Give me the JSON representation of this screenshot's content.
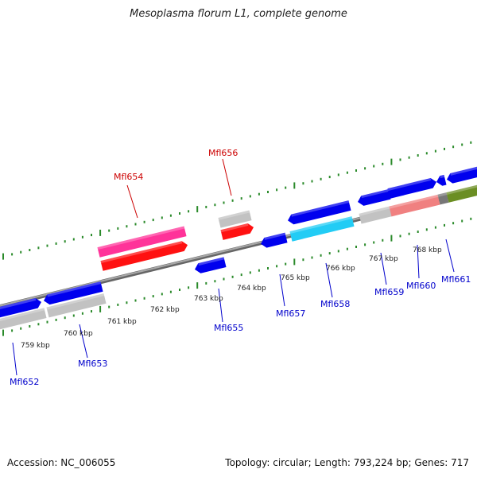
{
  "title": "Mesoplasma florum L1, complete genome",
  "footer": {
    "accession": "Accession: NC_006055",
    "info": "Topology: circular; Length: 793,224 bp; Genes: 717"
  },
  "colors": {
    "backbone": "#888888",
    "tick": "#2a8a2a",
    "label_red": "#cc0000",
    "label_blue": "#0000cc",
    "blue": "#0000ee",
    "gray": "#c2c2c2",
    "red": "#ff1111",
    "pink": "#ff3399",
    "cyan": "#22ccf5",
    "salmon": "#f08080",
    "olive": "#6b8e23",
    "darkgray": "#777777"
  },
  "ruler_labels": [
    "759 kbp",
    "760 kbp",
    "761 kbp",
    "762 kbp",
    "763 kbp",
    "764 kbp",
    "765 kbp",
    "766 kbp",
    "767 kbp",
    "768 kbp"
  ],
  "gene_labels": [
    {
      "text": "Mfl652",
      "color": "blue"
    },
    {
      "text": "Mfl653",
      "color": "blue"
    },
    {
      "text": "Mfl654",
      "color": "red"
    },
    {
      "text": "Mfl655",
      "color": "blue"
    },
    {
      "text": "Mfl656",
      "color": "red"
    },
    {
      "text": "Mfl657",
      "color": "blue"
    },
    {
      "text": "Mfl658",
      "color": "blue"
    },
    {
      "text": "Mfl659",
      "color": "blue"
    },
    {
      "text": "Mfl660",
      "color": "blue"
    },
    {
      "text": "Mfl661",
      "color": "blue"
    }
  ]
}
